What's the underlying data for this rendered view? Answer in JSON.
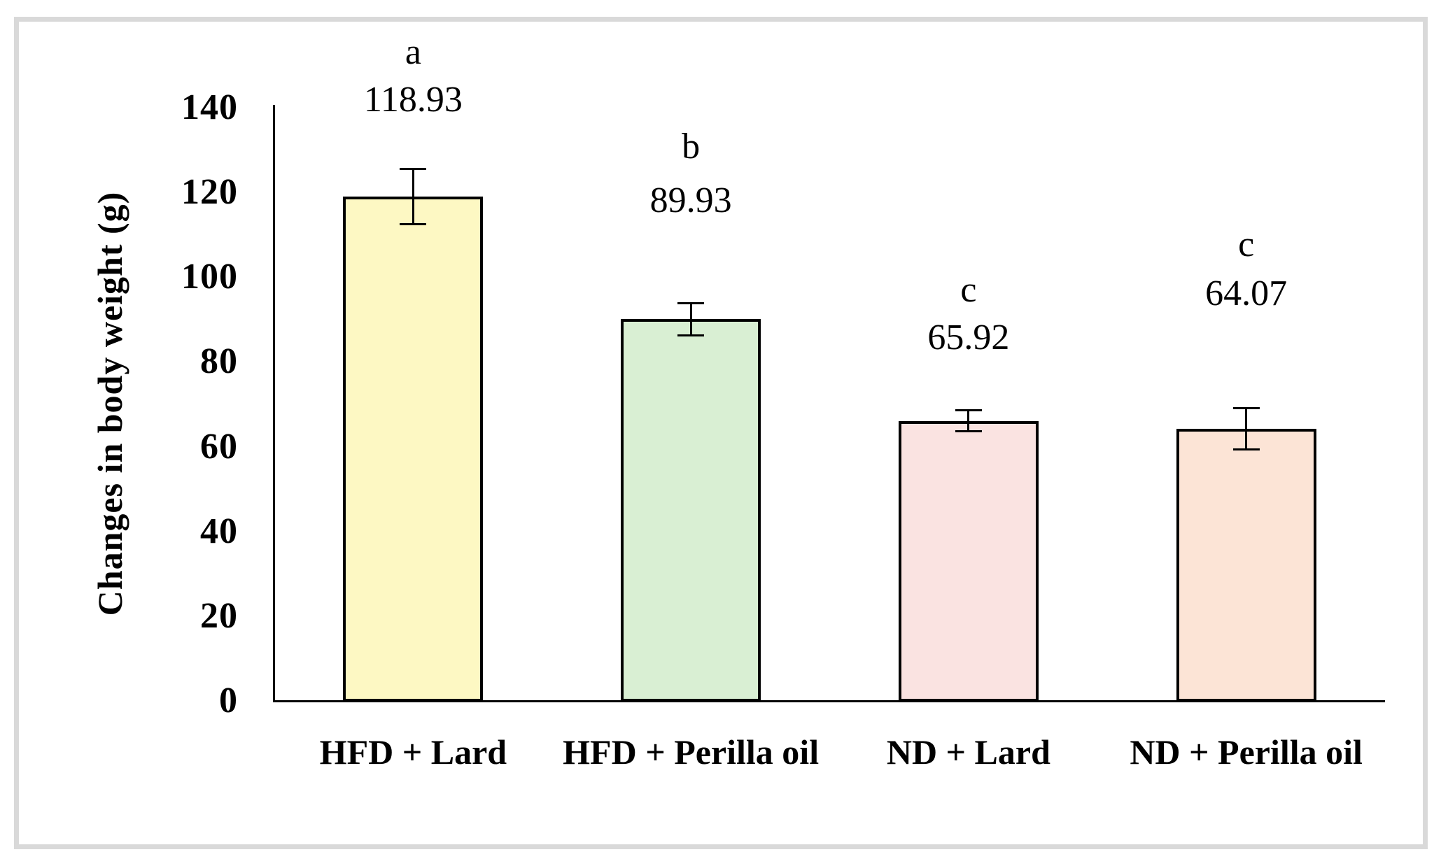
{
  "chart_data": {
    "type": "bar",
    "title": "",
    "xlabel": "",
    "ylabel": "Changes in body weight (g)",
    "ylim": [
      0,
      140
    ],
    "yticks": [
      0,
      20,
      40,
      60,
      80,
      100,
      120,
      140
    ],
    "grid": false,
    "legend": false,
    "categories": [
      "HFD + Lard",
      "HFD + Perilla oil",
      "ND + Lard",
      "ND + Perilla oil"
    ],
    "values": [
      118.93,
      89.93,
      65.92,
      64.07
    ],
    "value_labels": [
      "118.93",
      "89.93",
      "65.92",
      "64.07"
    ],
    "significance_letters": [
      "a",
      "b",
      "c",
      "c"
    ],
    "error_bars": [
      6.6,
      3.9,
      2.6,
      4.9
    ],
    "bar_colors": [
      "#FDF8C3",
      "#D9EFD3",
      "#FAE3E1",
      "#FCE4D6"
    ],
    "bar_border_color": "#000000",
    "axis_color": "#000000",
    "text_color": "#000000",
    "frame_border_color": "#D9D9D9"
  }
}
